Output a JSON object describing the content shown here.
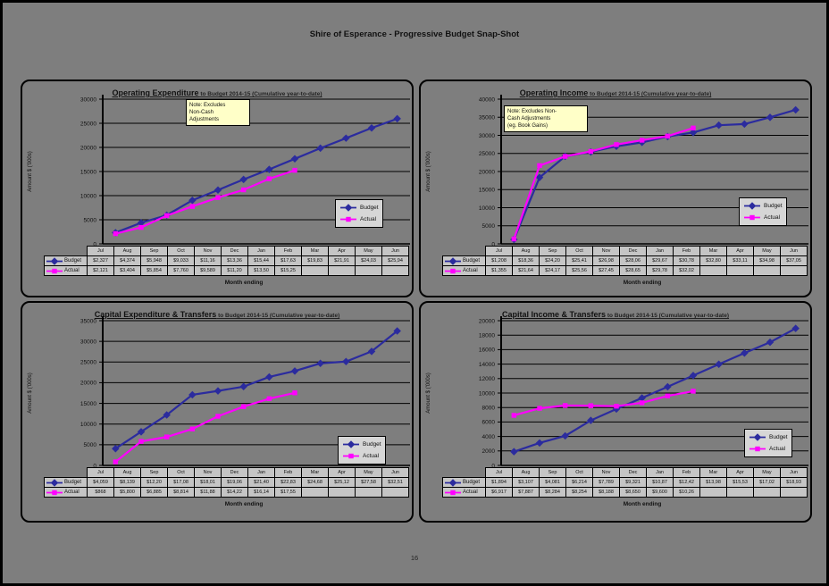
{
  "page": {
    "title": "Shire of Esperance - Progressive Budget Snap-Shot",
    "page_number": "16",
    "xaxis_title": "Month ending",
    "yaxis_title": "Amount $ ('000s)",
    "legend_labels": [
      "Budget",
      "Actual"
    ],
    "months": [
      "Jul",
      "Aug",
      "Sep",
      "Oct",
      "Nov",
      "Dec",
      "Jan",
      "Feb",
      "Mar",
      "Apr",
      "May",
      "Jun"
    ]
  },
  "colors": {
    "page_bg": "#7E7E7E",
    "budget_line": "#2B2B9E",
    "actual_line": "#FF00FF",
    "note_bg": "#FFFFC8",
    "cell_bg": "#C5C5C5",
    "legend_bg": "#D6D6D6"
  },
  "chart_data": [
    {
      "id": "operating-expenditure",
      "type": "line",
      "title": "Operating Expenditure",
      "subtitle": " to Budget 2014-15 (Cumulative year-to-date)",
      "note": [
        "Note: Excludes",
        "Non-Cash",
        "Adjustments"
      ],
      "xlabel": "Month ending",
      "ylabel": "Amount $ ('000s)",
      "ylim": [
        0,
        30000
      ],
      "ystep": 5000,
      "grid": true,
      "legend_position": "right",
      "categories": [
        "Jul",
        "Aug",
        "Sep",
        "Oct",
        "Nov",
        "Dec",
        "Jan",
        "Feb",
        "Mar",
        "Apr",
        "May",
        "Jun"
      ],
      "series": [
        {
          "name": "Budget",
          "marker": "diamond",
          "values": [
            2327,
            4374,
            5948,
            9033,
            11160,
            13360,
            15440,
            17630,
            19830,
            21910,
            24030,
            25940
          ],
          "table_labels": [
            "$2,327",
            "$4,374",
            "$5,948",
            "$9,033",
            "$11,16",
            "$13,36",
            "$15,44",
            "$17,63",
            "$19,83",
            "$21,91",
            "$24,03",
            "$25,94"
          ]
        },
        {
          "name": "Actual",
          "marker": "square",
          "values": [
            2121,
            3404,
            5854,
            7760,
            9589,
            11200,
            13500,
            15250
          ],
          "table_labels": [
            "$2,121",
            "$3,404",
            "$5,854",
            "$7,760",
            "$9,589",
            "$11,20",
            "$13,50",
            "$15,25",
            "",
            "",
            "",
            ""
          ]
        }
      ]
    },
    {
      "id": "operating-income",
      "type": "line",
      "title": "Operating Income",
      "subtitle": " to Budget 2014-15  (Cumulative year-to-date)",
      "note": [
        "Note: Excludes Non-",
        "Cash Adjustments",
        "(eg. Book Gains)"
      ],
      "xlabel": "Month ending",
      "ylabel": "Amount $ ('000s)",
      "ylim": [
        0,
        40000
      ],
      "ystep": 5000,
      "grid": true,
      "legend_position": "right",
      "categories": [
        "Jul",
        "Aug",
        "Sep",
        "Oct",
        "Nov",
        "Dec",
        "Jan",
        "Feb",
        "Mar",
        "Apr",
        "May",
        "Jun"
      ],
      "series": [
        {
          "name": "Budget",
          "marker": "diamond",
          "values": [
            1208,
            18360,
            24200,
            25410,
            26980,
            28060,
            29670,
            30780,
            32800,
            33110,
            34980,
            37050
          ],
          "table_labels": [
            "$1,208",
            "$18,36",
            "$24,20",
            "$25,41",
            "$26,98",
            "$28,06",
            "$29,67",
            "$30,78",
            "$32,80",
            "$33,11",
            "$34,98",
            "$37,05"
          ]
        },
        {
          "name": "Actual",
          "marker": "square",
          "values": [
            1355,
            21640,
            24170,
            25560,
            27450,
            28650,
            29780,
            32020
          ],
          "table_labels": [
            "$1,355",
            "$21,64",
            "$24,17",
            "$25,56",
            "$27,45",
            "$28,65",
            "$29,78",
            "$32,02",
            "",
            "",
            "",
            ""
          ]
        }
      ]
    },
    {
      "id": "capital-expenditure-transfers",
      "type": "line",
      "title": "Capital Expenditure & Transfers",
      "subtitle": " to Budget 2014-15  (Cumulative year-to-date)",
      "note": [],
      "xlabel": "Month ending",
      "ylabel": "Amount $ ('000s)",
      "ylim": [
        0,
        35000
      ],
      "ystep": 5000,
      "grid": true,
      "legend_position": "right",
      "categories": [
        "Jul",
        "Aug",
        "Sep",
        "Oct",
        "Nov",
        "Dec",
        "Jan",
        "Feb",
        "Mar",
        "Apr",
        "May",
        "Jun"
      ],
      "series": [
        {
          "name": "Budget",
          "marker": "diamond",
          "values": [
            4059,
            8139,
            12200,
            17080,
            18010,
            19060,
            21400,
            22830,
            24680,
            25120,
            27580,
            32510
          ],
          "table_labels": [
            "$4,059",
            "$8,139",
            "$12,20",
            "$17,08",
            "$18,01",
            "$19,06",
            "$21,40",
            "$22,83",
            "$24,68",
            "$25,12",
            "$27,58",
            "$32,51"
          ]
        },
        {
          "name": "Actual",
          "marker": "square",
          "values": [
            868,
            5800,
            6885,
            8814,
            11880,
            14220,
            16140,
            17550
          ],
          "table_labels": [
            "$868",
            "$5,800",
            "$6,885",
            "$8,814",
            "$11,88",
            "$14,22",
            "$16,14",
            "$17,55",
            "",
            "",
            "",
            ""
          ]
        }
      ]
    },
    {
      "id": "capital-income-transfers",
      "type": "line",
      "title": "Capital Income & Transfers",
      "subtitle": " to Budget 2014-15 (Cumulative year-to-date)",
      "note": [],
      "xlabel": "Month ending",
      "ylabel": "Amount $ ('000s)",
      "ylim": [
        0,
        20000
      ],
      "ystep": 2000,
      "grid": true,
      "legend_position": "right",
      "categories": [
        "Jul",
        "Aug",
        "Sep",
        "Oct",
        "Nov",
        "Dec",
        "Jan",
        "Feb",
        "Mar",
        "Apr",
        "May",
        "Jun"
      ],
      "series": [
        {
          "name": "Budget",
          "marker": "diamond",
          "values": [
            1894,
            3107,
            4081,
            6214,
            7789,
            9321,
            10870,
            12420,
            13980,
            15530,
            17020,
            18930
          ],
          "table_labels": [
            "$1,894",
            "$3,107",
            "$4,081",
            "$6,214",
            "$7,789",
            "$9,321",
            "$10,87",
            "$12,42",
            "$13,98",
            "$15,53",
            "$17,02",
            "$18,93"
          ]
        },
        {
          "name": "Actual",
          "marker": "square",
          "values": [
            6917,
            7887,
            8284,
            8254,
            8188,
            8650,
            9600,
            10260
          ],
          "table_labels": [
            "$6,917",
            "$7,887",
            "$8,284",
            "$8,254",
            "$8,188",
            "$8,650",
            "$9,600",
            "$10,26",
            "",
            "",
            "",
            ""
          ]
        }
      ]
    }
  ]
}
